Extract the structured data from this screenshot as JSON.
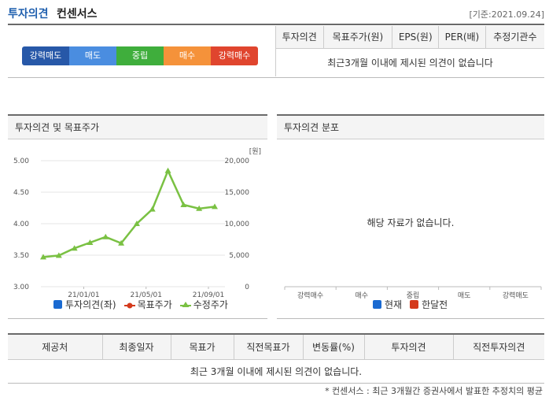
{
  "header": {
    "title_main": "투자의견",
    "title_sub": "컨센서스",
    "date": "[기준:2021.09.24]"
  },
  "opinion_scale": [
    {
      "label": "강력매도",
      "color": "#2758a8"
    },
    {
      "label": "매도",
      "color": "#4a8de0"
    },
    {
      "label": "중립",
      "color": "#3fae3c"
    },
    {
      "label": "매수",
      "color": "#f5923a"
    },
    {
      "label": "강력매수",
      "color": "#e0452e"
    }
  ],
  "summary_table": {
    "headers": [
      "투자의견",
      "목표주가(원)",
      "EPS(원)",
      "PER(배)",
      "추정기관수"
    ],
    "empty_message": "최근3개월 이내에 제시된 의견이 없습니다"
  },
  "chart_panel": {
    "title": "투자의견 및 목표주가",
    "legend": [
      {
        "label": "투자의견(좌)",
        "color": "#1a6ad1",
        "icon": "square-icon"
      },
      {
        "label": "목표주가",
        "color": "#d43a1c",
        "icon": "circle-line-icon"
      },
      {
        "label": "수정주가",
        "color": "#7ac143",
        "icon": "triangle-line-icon"
      }
    ]
  },
  "chart_data": {
    "type": "line",
    "left_axis": {
      "ticks": [
        "5.00",
        "4.50",
        "4.00",
        "3.50",
        "3.00"
      ],
      "range": [
        3.0,
        5.0
      ]
    },
    "right_axis": {
      "ticks": [
        "20,000",
        "15,000",
        "10,000",
        "5,000",
        "0"
      ],
      "range": [
        0,
        20000
      ],
      "unit_label": "[원]"
    },
    "x_ticks": [
      "21/01/01",
      "21/05/01",
      "21/09/01"
    ],
    "series": [
      {
        "name": "수정주가",
        "color": "#7ac143",
        "values": [
          4700,
          4950,
          6100,
          7000,
          7900,
          6900,
          10000,
          12300,
          18400,
          13000,
          12400,
          12700
        ]
      }
    ]
  },
  "dist_panel": {
    "title": "투자의견 분포",
    "empty_message": "해당 자료가 없습니다.",
    "categories": [
      "강력매수",
      "매수",
      "중립",
      "매도",
      "강력매도"
    ],
    "legend": [
      {
        "label": "현재",
        "color": "#1a6ad1"
      },
      {
        "label": "한달전",
        "color": "#d43a1c"
      }
    ]
  },
  "bottom_table": {
    "headers": [
      "제공처",
      "최종일자",
      "목표가",
      "직전목표가",
      "변동률(%)",
      "투자의견",
      "직전투자의견"
    ],
    "empty_message": "최근 3개월 이내에 제시된 의견이 없습니다."
  },
  "footnote": "* 컨센서스 : 최근 3개월간 증권사에서 발표한 추정치의 평균"
}
